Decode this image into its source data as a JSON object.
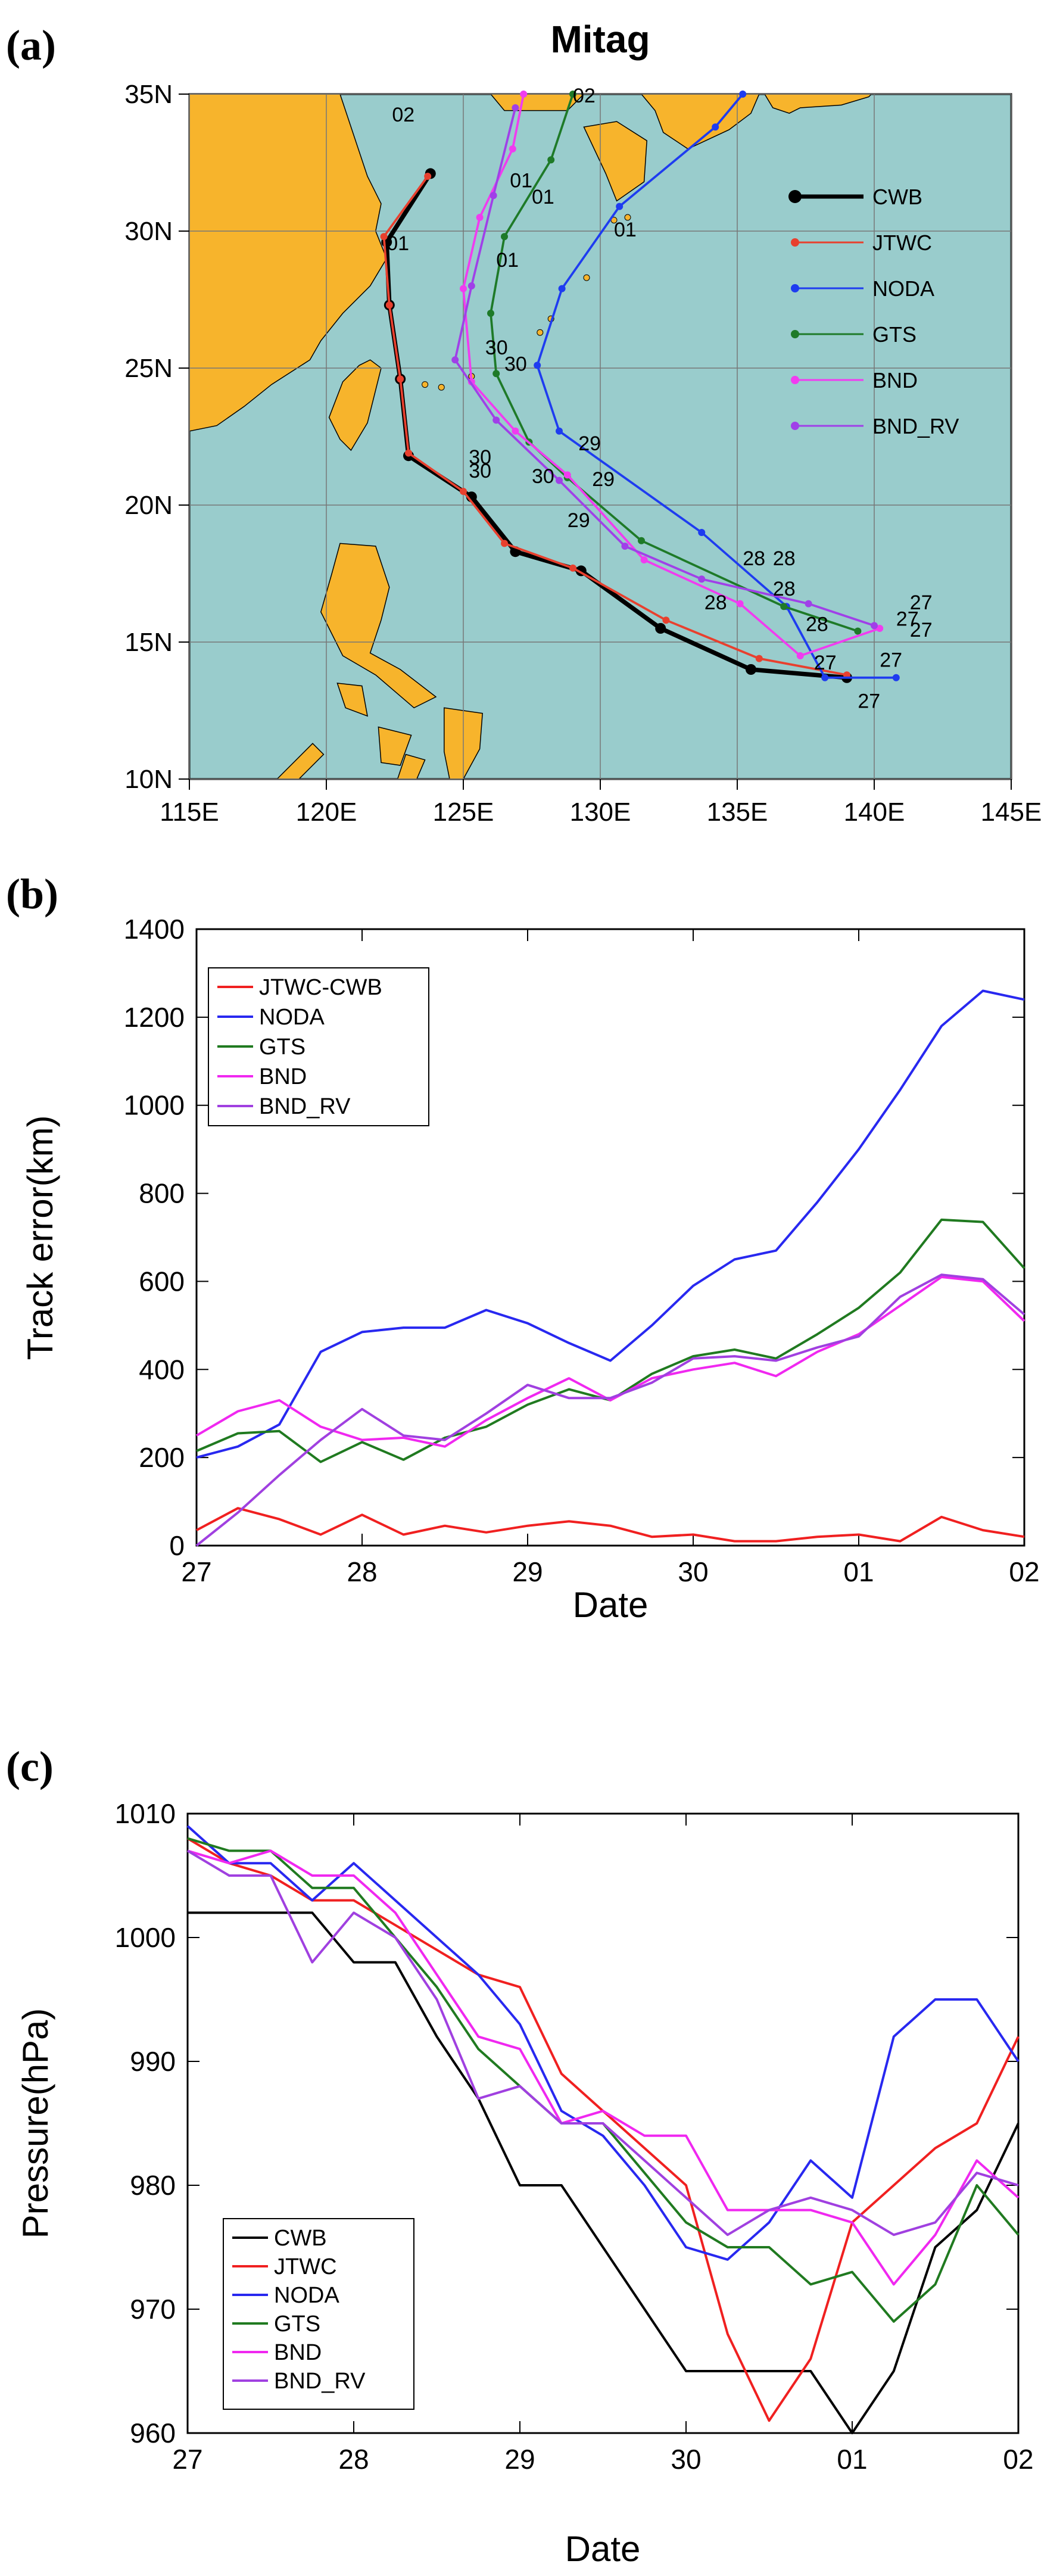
{
  "panels": {
    "a": "(a)",
    "b": "(b)",
    "c": "(c)"
  },
  "chart_data": [
    {
      "type": "map",
      "title": "Mitag",
      "xlim": [
        115,
        145
      ],
      "ylim": [
        10,
        35
      ],
      "x_ticks": [
        "115E",
        "120E",
        "125E",
        "130E",
        "135E",
        "140E",
        "145E"
      ],
      "y_ticks": [
        "10N",
        "15N",
        "20N",
        "25N",
        "30N",
        "35N"
      ],
      "x_tick_values": [
        115,
        120,
        125,
        130,
        135,
        140,
        145
      ],
      "y_tick_values": [
        10,
        15,
        20,
        25,
        30,
        35
      ],
      "ocean_color": "#99cccc",
      "land_color": "#f7b42c",
      "legend": {
        "placement": "right",
        "entries": [
          "CWB",
          "JTWC",
          "NODA",
          "GTS",
          "BND",
          "BND_RV"
        ]
      },
      "series": [
        {
          "name": "CWB",
          "color": "#000000",
          "width": 3,
          "points": [
            [
              139.0,
              13.7
            ],
            [
              135.5,
              14.0
            ],
            [
              132.2,
              15.5
            ],
            [
              129.3,
              17.6
            ],
            [
              126.9,
              18.3
            ],
            [
              125.3,
              20.3
            ],
            [
              123.0,
              21.8
            ],
            [
              122.7,
              24.6
            ],
            [
              122.3,
              27.3
            ],
            [
              122.2,
              29.6
            ],
            [
              123.8,
              32.1
            ]
          ]
        },
        {
          "name": "JTWC",
          "color": "#e8402e",
          "width": 1.5,
          "points": [
            [
              139.0,
              13.8
            ],
            [
              135.8,
              14.4
            ],
            [
              132.4,
              15.8
            ],
            [
              129.0,
              17.7
            ],
            [
              126.5,
              18.6
            ],
            [
              125.0,
              20.5
            ],
            [
              123.0,
              21.9
            ],
            [
              122.7,
              24.6
            ],
            [
              122.3,
              27.3
            ],
            [
              122.1,
              29.8
            ],
            [
              123.7,
              32.0
            ]
          ]
        },
        {
          "name": "NODA",
          "color": "#1e3cf0",
          "width": 1.5,
          "points": [
            [
              140.8,
              13.7
            ],
            [
              138.2,
              13.7
            ],
            [
              136.8,
              16.3
            ],
            [
              133.7,
              19.0
            ],
            [
              128.5,
              22.7
            ],
            [
              127.7,
              25.1
            ],
            [
              128.6,
              27.9
            ],
            [
              130.7,
              30.9
            ],
            [
              134.2,
              33.8
            ],
            [
              135.2,
              35.0
            ]
          ]
        },
        {
          "name": "GTS",
          "color": "#1e7a28",
          "width": 1.5,
          "points": [
            [
              139.4,
              15.4
            ],
            [
              136.7,
              16.3
            ],
            [
              131.5,
              18.7
            ],
            [
              128.8,
              21.0
            ],
            [
              127.4,
              22.3
            ],
            [
              126.2,
              24.8
            ],
            [
              126.0,
              27.0
            ],
            [
              126.5,
              29.8
            ],
            [
              128.2,
              32.6
            ],
            [
              129.0,
              35.0
            ]
          ]
        },
        {
          "name": "BND",
          "color": "#f03cf0",
          "width": 1.5,
          "points": [
            [
              140.2,
              15.5
            ],
            [
              137.3,
              14.5
            ],
            [
              135.1,
              16.4
            ],
            [
              131.6,
              18.0
            ],
            [
              128.8,
              21.1
            ],
            [
              126.9,
              22.7
            ],
            [
              125.3,
              24.5
            ],
            [
              125.0,
              27.9
            ],
            [
              125.6,
              30.5
            ],
            [
              126.8,
              33.0
            ],
            [
              127.2,
              35.0
            ]
          ]
        },
        {
          "name": "BND_RV",
          "color": "#a040e8",
          "width": 1.5,
          "points": [
            [
              140.0,
              15.6
            ],
            [
              137.6,
              16.4
            ],
            [
              133.7,
              17.3
            ],
            [
              130.9,
              18.5
            ],
            [
              128.5,
              20.9
            ],
            [
              126.2,
              23.1
            ],
            [
              124.7,
              25.3
            ],
            [
              125.3,
              28.0
            ],
            [
              126.1,
              31.3
            ],
            [
              126.9,
              34.5
            ]
          ]
        }
      ],
      "labels": [
        {
          "text": "02",
          "lon": 122.4,
          "lat": 34.0,
          "color": "#cc2a2a"
        },
        {
          "text": "01",
          "lon": 126.7,
          "lat": 31.6,
          "color": "#cc2a2a"
        },
        {
          "text": "01",
          "lon": 127.5,
          "lat": 31.0,
          "color": "#f03cf0"
        },
        {
          "text": "01",
          "lon": 122.2,
          "lat": 29.3,
          "color": "#cc2a2a"
        },
        {
          "text": "01",
          "lon": 130.5,
          "lat": 29.8,
          "color": "#1e3cf0"
        },
        {
          "text": "01",
          "lon": 126.2,
          "lat": 28.7,
          "color": "#1e7a28"
        },
        {
          "text": "02",
          "lon": 129.0,
          "lat": 34.7,
          "color": "#1e7a28"
        },
        {
          "text": "30",
          "lon": 125.8,
          "lat": 25.5,
          "color": "#a040e8"
        },
        {
          "text": "30",
          "lon": 126.5,
          "lat": 24.9,
          "color": "#f03cf0"
        },
        {
          "text": "30",
          "lon": 125.2,
          "lat": 21.5,
          "color": "#cc2a2a"
        },
        {
          "text": "30",
          "lon": 125.2,
          "lat": 21.0,
          "color": "#1e7a28"
        },
        {
          "text": "30",
          "lon": 127.5,
          "lat": 20.8,
          "color": "#1e3cf0"
        },
        {
          "text": "29",
          "lon": 129.2,
          "lat": 22.0,
          "color": "#a040e8"
        },
        {
          "text": "29",
          "lon": 129.7,
          "lat": 20.7,
          "color": "#1e3cf0"
        },
        {
          "text": "29",
          "lon": 128.8,
          "lat": 19.2,
          "color": "#1e7a28"
        },
        {
          "text": "28",
          "lon": 135.2,
          "lat": 17.8,
          "color": "#cc2a2a"
        },
        {
          "text": "28",
          "lon": 136.3,
          "lat": 17.8,
          "color": "#a040e8"
        },
        {
          "text": "28",
          "lon": 136.3,
          "lat": 16.7,
          "color": "#f03cf0"
        },
        {
          "text": "28",
          "lon": 137.5,
          "lat": 15.4,
          "color": "#1e3cf0"
        },
        {
          "text": "28",
          "lon": 133.8,
          "lat": 16.2,
          "color": "#1e7a28"
        },
        {
          "text": "27",
          "lon": 141.3,
          "lat": 16.2,
          "color": "#f03cf0"
        },
        {
          "text": "27",
          "lon": 140.8,
          "lat": 15.6,
          "color": "#a040e8"
        },
        {
          "text": "27",
          "lon": 141.3,
          "lat": 15.2,
          "color": "#000000"
        },
        {
          "text": "27",
          "lon": 137.8,
          "lat": 14.0,
          "color": "#1e7a28"
        },
        {
          "text": "27",
          "lon": 140.2,
          "lat": 14.1,
          "color": "#a040e8"
        },
        {
          "text": "27",
          "lon": 139.4,
          "lat": 12.6,
          "color": "#1e3cf0"
        }
      ]
    },
    {
      "type": "line",
      "title": "",
      "xlabel": "Date",
      "ylabel": "Track error(km)",
      "x_tick_labels": [
        "27",
        "28",
        "29",
        "30",
        "01",
        "02"
      ],
      "x_tick_values": [
        0,
        4,
        8,
        12,
        16,
        20
      ],
      "xlim": [
        0,
        20
      ],
      "ylim": [
        0,
        1400
      ],
      "y_ticks": [
        0,
        200,
        400,
        600,
        800,
        1000,
        1200,
        1400
      ],
      "legend": {
        "placement": "top-left",
        "entries": [
          "JTWC-CWB",
          "NODA",
          "GTS",
          "BND",
          "BND_RV"
        ]
      },
      "x": [
        0,
        1,
        2,
        3,
        4,
        5,
        6,
        7,
        8,
        9,
        10,
        11,
        12,
        13,
        14,
        15,
        16,
        17,
        18,
        19,
        20
      ],
      "series": [
        {
          "name": "JTWC-CWB",
          "color": "#f02020",
          "values": [
            35,
            85,
            60,
            25,
            70,
            25,
            45,
            30,
            45,
            55,
            45,
            20,
            25,
            10,
            10,
            20,
            25,
            10,
            65,
            35,
            20
          ]
        },
        {
          "name": "NODA",
          "color": "#2828f0",
          "values": [
            200,
            225,
            275,
            440,
            485,
            495,
            495,
            535,
            505,
            460,
            420,
            500,
            590,
            650,
            670,
            780,
            900,
            1035,
            1180,
            1260,
            1240
          ]
        },
        {
          "name": "GTS",
          "color": "#207a20",
          "values": [
            215,
            255,
            260,
            190,
            235,
            195,
            245,
            270,
            320,
            355,
            330,
            390,
            430,
            445,
            425,
            480,
            540,
            620,
            740,
            735,
            630
          ]
        },
        {
          "name": "BND",
          "color": "#f028f0",
          "values": [
            250,
            305,
            330,
            270,
            240,
            245,
            225,
            285,
            335,
            380,
            330,
            380,
            400,
            415,
            385,
            440,
            480,
            545,
            610,
            600,
            510
          ]
        },
        {
          "name": "BND_RV",
          "color": "#a040e0",
          "values": [
            0,
            75,
            160,
            240,
            310,
            250,
            240,
            300,
            365,
            335,
            335,
            370,
            425,
            430,
            420,
            450,
            475,
            565,
            615,
            605,
            525
          ]
        }
      ]
    },
    {
      "type": "line",
      "title": "",
      "xlabel": "Date",
      "ylabel": "Pressure(hPa)",
      "x_tick_labels": [
        "27",
        "28",
        "29",
        "30",
        "01",
        "02"
      ],
      "x_tick_values": [
        0,
        4,
        8,
        12,
        16,
        20
      ],
      "xlim": [
        0,
        20
      ],
      "ylim": [
        960,
        1010
      ],
      "y_ticks": [
        960,
        970,
        980,
        990,
        1000,
        1010
      ],
      "legend": {
        "placement": "bottom-left",
        "entries": [
          "CWB",
          "JTWC",
          "NODA",
          "GTS",
          "BND",
          "BND_RV"
        ]
      },
      "x": [
        0,
        1,
        2,
        3,
        4,
        5,
        6,
        7,
        8,
        9,
        10,
        11,
        12,
        13,
        14,
        15,
        16,
        17,
        18,
        19,
        20
      ],
      "series": [
        {
          "name": "CWB",
          "color": "#000000",
          "values": [
            1002,
            1002,
            1002,
            1002,
            998,
            998,
            992,
            987,
            980,
            980,
            975,
            970,
            965,
            965,
            965,
            965,
            960,
            965,
            975,
            978,
            985
          ]
        },
        {
          "name": "JTWC",
          "color": "#f02020",
          "values": [
            1008,
            1006,
            1005,
            1003,
            1003,
            1001,
            999,
            997,
            996,
            989,
            986,
            983,
            980,
            968,
            961,
            966,
            977,
            980,
            983,
            985,
            992
          ]
        },
        {
          "name": "NODA",
          "color": "#2828f0",
          "values": [
            1009,
            1006,
            1006,
            1003,
            1006,
            1003,
            1000,
            997,
            993,
            986,
            984,
            980,
            975,
            974,
            977,
            982,
            979,
            992,
            995,
            995,
            990
          ]
        },
        {
          "name": "GTS",
          "color": "#207a20",
          "values": [
            1008,
            1007,
            1007,
            1004,
            1004,
            1000,
            996,
            991,
            988,
            985,
            985,
            981,
            977,
            975,
            975,
            972,
            973,
            969,
            972,
            980,
            976
          ]
        },
        {
          "name": "BND",
          "color": "#f028f0",
          "values": [
            1007,
            1006,
            1007,
            1005,
            1005,
            1002,
            997,
            992,
            991,
            985,
            986,
            984,
            984,
            978,
            978,
            978,
            977,
            972,
            976,
            982,
            979
          ]
        },
        {
          "name": "BND_RV",
          "color": "#a040e0",
          "values": [
            1007,
            1005,
            1005,
            998,
            1002,
            1000,
            995,
            987,
            988,
            985,
            985,
            982,
            979,
            976,
            978,
            979,
            978,
            976,
            977,
            981,
            980
          ]
        }
      ]
    }
  ]
}
